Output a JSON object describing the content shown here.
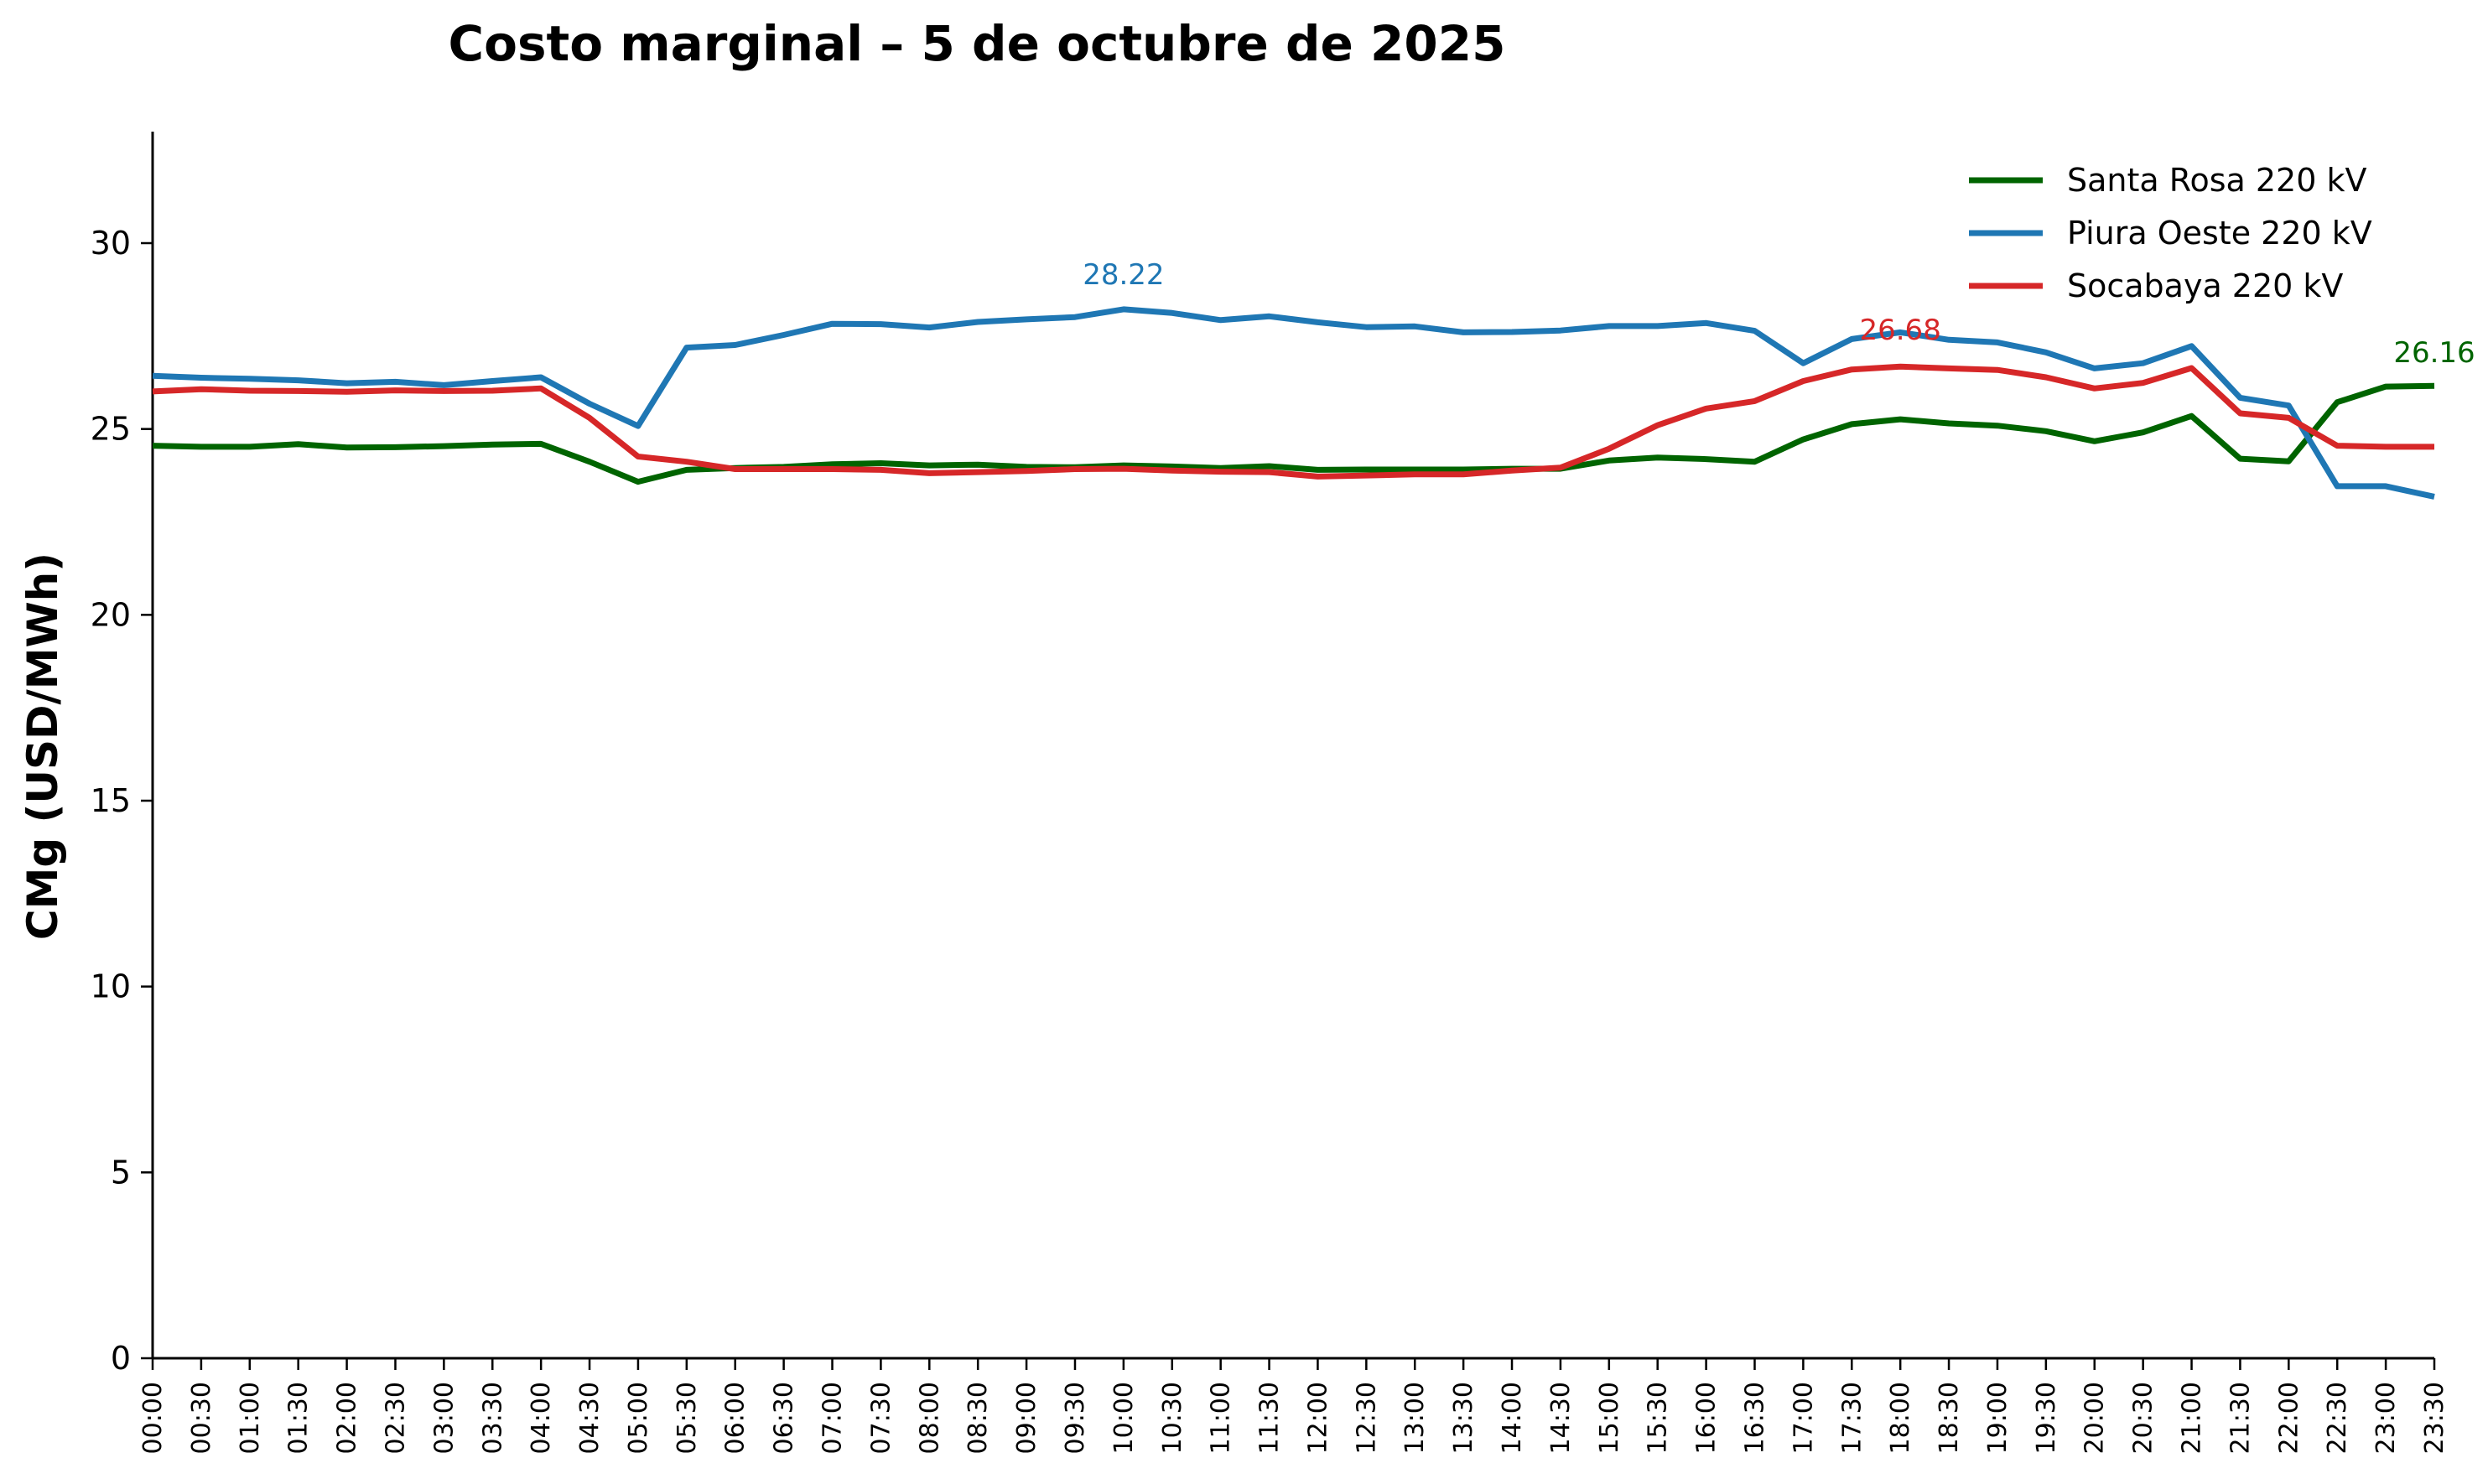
{
  "chart_data": {
    "type": "line",
    "title": "Costo marginal – 5 de octubre de 2025",
    "xlabel": "",
    "ylabel": "CMg (USD/MWh)",
    "ylim": [
      0,
      33
    ],
    "yticks": [
      0,
      5,
      10,
      15,
      20,
      25,
      30
    ],
    "grid": false,
    "legend_position": "top-right",
    "categories": [
      "00:00",
      "00:30",
      "01:00",
      "01:30",
      "02:00",
      "02:30",
      "03:00",
      "03:30",
      "04:00",
      "04:30",
      "05:00",
      "05:30",
      "06:00",
      "06:30",
      "07:00",
      "07:30",
      "08:00",
      "08:30",
      "09:00",
      "09:30",
      "10:00",
      "10:30",
      "11:00",
      "11:30",
      "12:00",
      "12:30",
      "13:00",
      "13:30",
      "14:00",
      "14:30",
      "15:00",
      "15:30",
      "16:00",
      "16:30",
      "17:00",
      "17:30",
      "18:00",
      "18:30",
      "19:00",
      "19:30",
      "20:00",
      "20:30",
      "21:00",
      "21:30",
      "22:00",
      "22:30",
      "23:00",
      "23:30"
    ],
    "series": [
      {
        "name": "Santa Rosa 220 kV",
        "color": "#006400",
        "values": [
          24.55,
          24.52,
          24.52,
          24.59,
          24.5,
          24.51,
          24.54,
          24.58,
          24.6,
          24.12,
          23.58,
          23.9,
          23.95,
          23.98,
          24.05,
          24.08,
          24.02,
          24.04,
          23.98,
          23.97,
          24.02,
          23.99,
          23.95,
          24.0,
          23.9,
          23.91,
          23.91,
          23.91,
          23.93,
          23.93,
          24.15,
          24.23,
          24.19,
          24.12,
          24.72,
          25.13,
          25.26,
          25.15,
          25.09,
          24.94,
          24.67,
          24.91,
          25.35,
          24.2,
          24.13,
          25.72,
          26.14,
          26.16
        ],
        "annotation": {
          "index": 47,
          "text": "26.16"
        }
      },
      {
        "name": "Piura Oeste 220 kV",
        "color": "#1f77b4",
        "values": [
          26.43,
          26.38,
          26.35,
          26.31,
          26.23,
          26.27,
          26.18,
          26.29,
          26.39,
          25.68,
          25.08,
          27.19,
          27.26,
          27.53,
          27.83,
          27.82,
          27.73,
          27.88,
          27.95,
          28.01,
          28.22,
          28.12,
          27.93,
          28.03,
          27.87,
          27.74,
          27.76,
          27.6,
          27.61,
          27.65,
          27.77,
          27.77,
          27.85,
          27.64,
          26.77,
          27.42,
          27.6,
          27.4,
          27.33,
          27.06,
          26.63,
          26.77,
          27.23,
          25.84,
          25.63,
          23.46,
          23.46,
          23.18
        ],
        "annotation": {
          "index": 20,
          "text": "28.22"
        }
      },
      {
        "name": "Socabaya 220 kV",
        "color": "#d62728",
        "values": [
          26.01,
          26.07,
          26.03,
          26.02,
          26.0,
          26.04,
          26.02,
          26.03,
          26.09,
          25.3,
          24.26,
          24.12,
          23.92,
          23.92,
          23.92,
          23.9,
          23.81,
          23.84,
          23.87,
          23.92,
          23.93,
          23.88,
          23.85,
          23.84,
          23.72,
          23.75,
          23.78,
          23.78,
          23.88,
          23.96,
          24.47,
          25.1,
          25.55,
          25.75,
          26.29,
          26.6,
          26.68,
          26.63,
          26.59,
          26.39,
          26.09,
          26.24,
          26.64,
          25.42,
          25.3,
          24.55,
          24.52,
          24.52
        ],
        "annotation": {
          "index": 36,
          "text": "26.68"
        }
      }
    ]
  }
}
